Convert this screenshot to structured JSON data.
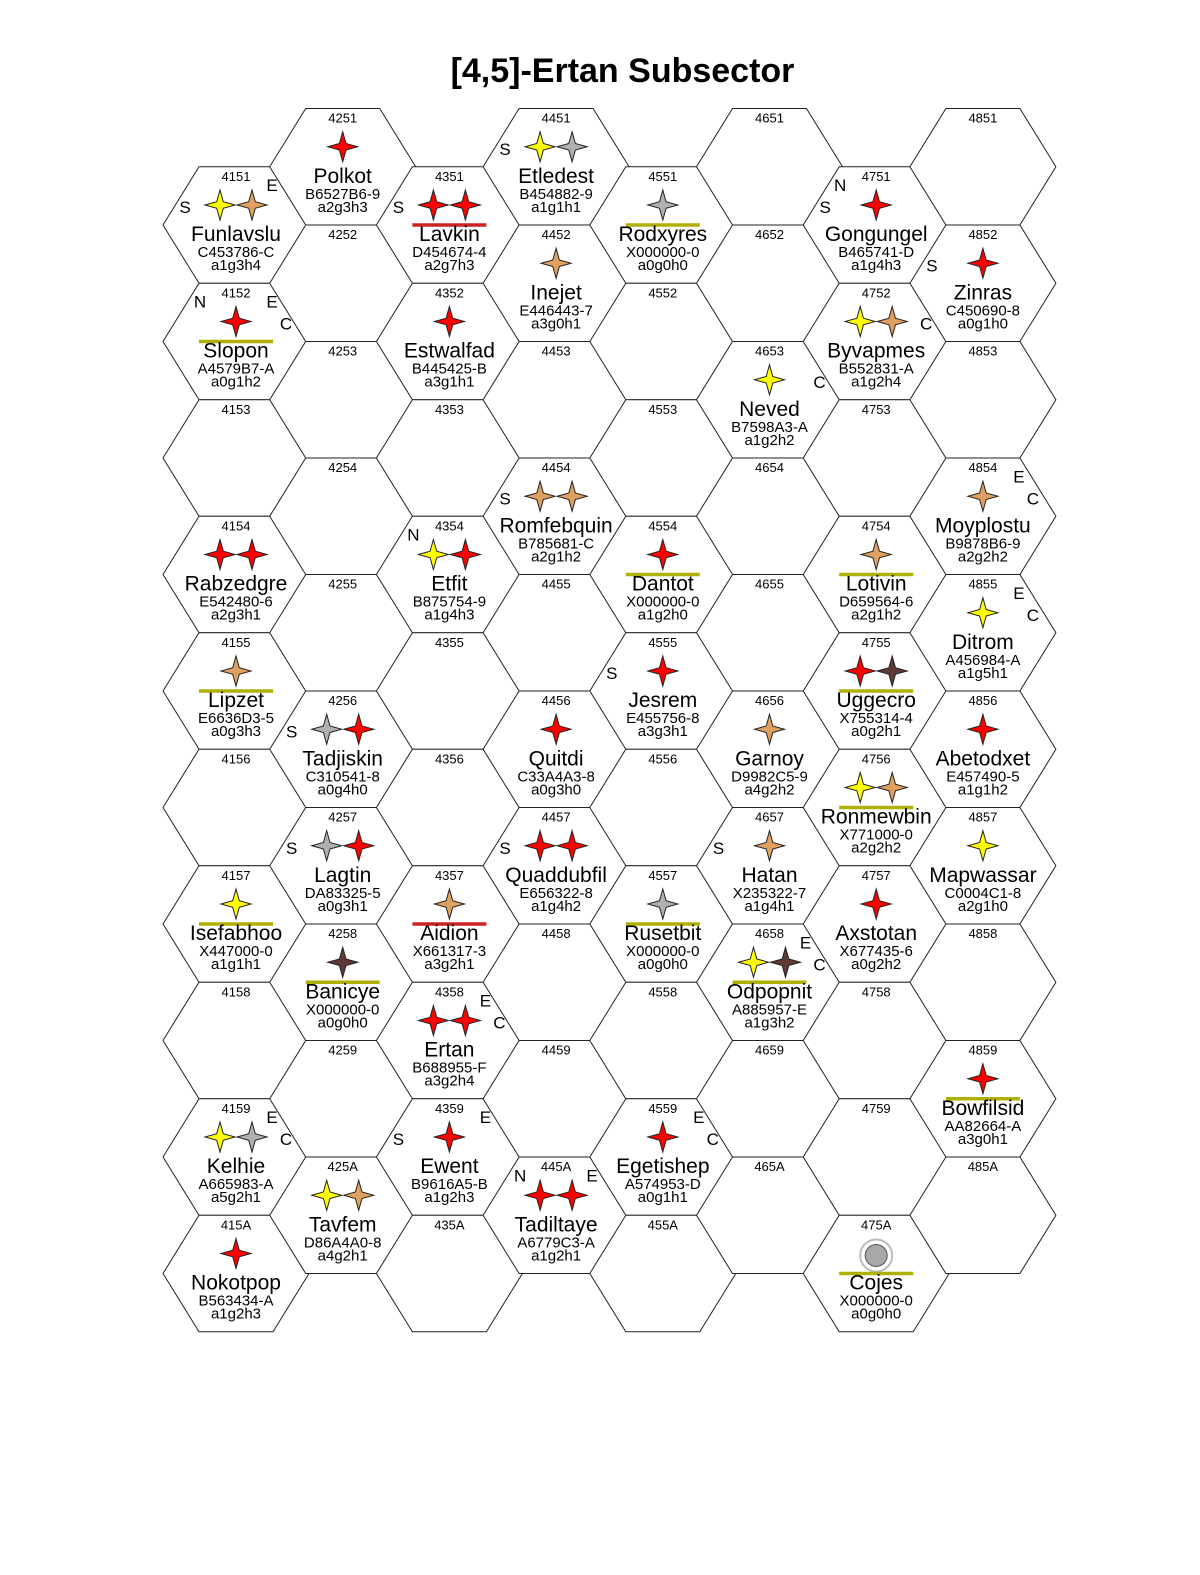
{
  "title": "[4,5]-Ertan Subsector",
  "colors": {
    "red": "#ff0000",
    "yellow": "#ffff00",
    "orange": "#e0a060",
    "grey": "#b0b0b0",
    "brown": "#603838",
    "olive": "#b0b000",
    "darkred": "#cc2222"
  },
  "hexes": [
    {
      "col": 0,
      "row": 0,
      "num": "4151",
      "name": "Funlavslu",
      "uwp": "C453786-C",
      "pbg": "a1g3h4",
      "stars": [
        "yellow",
        "orange"
      ],
      "bases": [
        "S",
        "E"
      ]
    },
    {
      "col": 0,
      "row": 1,
      "num": "4152",
      "name": "Slopon",
      "uwp": "A4579B7-A",
      "pbg": "a0g1h2",
      "stars": [
        "red"
      ],
      "bases": [
        "N",
        "E",
        "C"
      ],
      "underline": "olive"
    },
    {
      "col": 0,
      "row": 2,
      "num": "4153"
    },
    {
      "col": 0,
      "row": 3,
      "num": "4154",
      "name": "Rabzedgre",
      "uwp": "E542480-6",
      "pbg": "a2g3h1",
      "stars": [
        "red",
        "red"
      ]
    },
    {
      "col": 0,
      "row": 4,
      "num": "4155",
      "name": "Lipzet",
      "uwp": "E6636D3-5",
      "pbg": "a0g3h3",
      "stars": [
        "orange"
      ],
      "underline": "olive"
    },
    {
      "col": 0,
      "row": 5,
      "num": "4156"
    },
    {
      "col": 0,
      "row": 6,
      "num": "4157",
      "name": "Isefabhoo",
      "uwp": "X447000-0",
      "pbg": "a1g1h1",
      "stars": [
        "yellow"
      ],
      "underline": "olive"
    },
    {
      "col": 0,
      "row": 7,
      "num": "4158"
    },
    {
      "col": 0,
      "row": 8,
      "num": "4159",
      "name": "Kelhie",
      "uwp": "A665983-A",
      "pbg": "a5g2h1",
      "stars": [
        "yellow",
        "grey"
      ],
      "bases": [
        "E",
        "C"
      ]
    },
    {
      "col": 0,
      "row": 9,
      "num": "415A",
      "name": "Nokotpop",
      "uwp": "B563434-A",
      "pbg": "a1g2h3",
      "stars": [
        "red"
      ]
    },
    {
      "col": 1,
      "row": 0,
      "num": "4251",
      "name": "Polkot",
      "uwp": "B6527B6-9",
      "pbg": "a2g3h3",
      "stars": [
        "red"
      ]
    },
    {
      "col": 1,
      "row": 1,
      "num": "4252"
    },
    {
      "col": 1,
      "row": 2,
      "num": "4253"
    },
    {
      "col": 1,
      "row": 3,
      "num": "4254"
    },
    {
      "col": 1,
      "row": 4,
      "num": "4255"
    },
    {
      "col": 1,
      "row": 5,
      "num": "4256",
      "name": "Tadjiskin",
      "uwp": "C310541-8",
      "pbg": "a0g4h0",
      "stars": [
        "grey",
        "red"
      ],
      "bases": [
        "S"
      ]
    },
    {
      "col": 1,
      "row": 6,
      "num": "4257",
      "name": "Lagtin",
      "uwp": "DA83325-5",
      "pbg": "a0g3h1",
      "stars": [
        "grey",
        "red"
      ],
      "bases": [
        "S"
      ]
    },
    {
      "col": 1,
      "row": 7,
      "num": "4258",
      "name": "Banicye",
      "uwp": "X000000-0",
      "pbg": "a0g0h0",
      "stars": [
        "brown"
      ],
      "underline": "olive"
    },
    {
      "col": 1,
      "row": 8,
      "num": "4259"
    },
    {
      "col": 1,
      "row": 9,
      "num": "425A",
      "name": "Tavfem",
      "uwp": "D86A4A0-8",
      "pbg": "a4g2h1",
      "stars": [
        "yellow",
        "orange"
      ]
    },
    {
      "col": 2,
      "row": 0,
      "num": "4351",
      "name": "Lavkin",
      "uwp": "D454674-4",
      "pbg": "a2g7h3",
      "stars": [
        "red",
        "red"
      ],
      "bases": [
        "S"
      ],
      "underline": "darkred"
    },
    {
      "col": 2,
      "row": 1,
      "num": "4352",
      "name": "Estwalfad",
      "uwp": "B445425-B",
      "pbg": "a3g1h1",
      "stars": [
        "red"
      ]
    },
    {
      "col": 2,
      "row": 2,
      "num": "4353"
    },
    {
      "col": 2,
      "row": 3,
      "num": "4354",
      "name": "Etfit",
      "uwp": "B875754-9",
      "pbg": "a1g4h3",
      "stars": [
        "yellow",
        "red"
      ],
      "bases": [
        "N"
      ]
    },
    {
      "col": 2,
      "row": 4,
      "num": "4355"
    },
    {
      "col": 2,
      "row": 5,
      "num": "4356"
    },
    {
      "col": 2,
      "row": 6,
      "num": "4357",
      "name": "Aidion",
      "uwp": "X661317-3",
      "pbg": "a3g2h1",
      "stars": [
        "orange"
      ],
      "underline": "darkred"
    },
    {
      "col": 2,
      "row": 7,
      "num": "4358",
      "name": "Ertan",
      "uwp": "B688955-F",
      "pbg": "a3g2h4",
      "stars": [
        "red",
        "red"
      ],
      "bases": [
        "E",
        "C"
      ]
    },
    {
      "col": 2,
      "row": 8,
      "num": "4359",
      "name": "Ewent",
      "uwp": "B9616A5-B",
      "pbg": "a1g2h3",
      "stars": [
        "red"
      ],
      "bases": [
        "S",
        "E"
      ]
    },
    {
      "col": 2,
      "row": 9,
      "num": "435A"
    },
    {
      "col": 3,
      "row": 0,
      "num": "4451",
      "name": "Etledest",
      "uwp": "B454882-9",
      "pbg": "a1g1h1",
      "stars": [
        "yellow",
        "grey"
      ],
      "bases": [
        "S"
      ]
    },
    {
      "col": 3,
      "row": 1,
      "num": "4452",
      "name": "Inejet",
      "uwp": "E446443-7",
      "pbg": "a3g0h1",
      "stars": [
        "orange"
      ]
    },
    {
      "col": 3,
      "row": 2,
      "num": "4453"
    },
    {
      "col": 3,
      "row": 3,
      "num": "4454",
      "name": "Romfebquin",
      "uwp": "B785681-C",
      "pbg": "a2g1h2",
      "stars": [
        "orange",
        "orange"
      ],
      "bases": [
        "S"
      ]
    },
    {
      "col": 3,
      "row": 4,
      "num": "4455"
    },
    {
      "col": 3,
      "row": 5,
      "num": "4456",
      "name": "Quitdi",
      "uwp": "C33A4A3-8",
      "pbg": "a0g3h0",
      "stars": [
        "red"
      ]
    },
    {
      "col": 3,
      "row": 6,
      "num": "4457",
      "name": "Quaddubfil",
      "uwp": "E656322-8",
      "pbg": "a1g4h2",
      "stars": [
        "red",
        "red"
      ],
      "bases": [
        "S"
      ]
    },
    {
      "col": 3,
      "row": 7,
      "num": "4458"
    },
    {
      "col": 3,
      "row": 8,
      "num": "4459"
    },
    {
      "col": 3,
      "row": 9,
      "num": "445A",
      "name": "Tadiltaye",
      "uwp": "A6779C3-A",
      "pbg": "a1g2h1",
      "stars": [
        "red",
        "red"
      ],
      "bases": [
        "N",
        "E"
      ]
    },
    {
      "col": 4,
      "row": 0,
      "num": "4551",
      "name": "Rodxyres",
      "uwp": "X000000-0",
      "pbg": "a0g0h0",
      "stars": [
        "grey"
      ],
      "underline": "olive"
    },
    {
      "col": 4,
      "row": 1,
      "num": "4552"
    },
    {
      "col": 4,
      "row": 2,
      "num": "4553"
    },
    {
      "col": 4,
      "row": 3,
      "num": "4554",
      "name": "Dantot",
      "uwp": "X000000-0",
      "pbg": "a1g2h0",
      "stars": [
        "red"
      ],
      "underline": "olive"
    },
    {
      "col": 4,
      "row": 4,
      "num": "4555",
      "name": "Jesrem",
      "uwp": "E455756-8",
      "pbg": "a3g3h1",
      "stars": [
        "red"
      ],
      "bases": [
        "S"
      ]
    },
    {
      "col": 4,
      "row": 5,
      "num": "4556"
    },
    {
      "col": 4,
      "row": 6,
      "num": "4557",
      "name": "Rusetbit",
      "uwp": "X000000-0",
      "pbg": "a0g0h0",
      "stars": [
        "grey"
      ],
      "underline": "olive"
    },
    {
      "col": 4,
      "row": 7,
      "num": "4558"
    },
    {
      "col": 4,
      "row": 8,
      "num": "4559",
      "name": "Egetishep",
      "uwp": "A574953-D",
      "pbg": "a0g1h1",
      "stars": [
        "red"
      ],
      "bases": [
        "E",
        "C"
      ]
    },
    {
      "col": 4,
      "row": 9,
      "num": "455A"
    },
    {
      "col": 5,
      "row": 0,
      "num": "4651"
    },
    {
      "col": 5,
      "row": 1,
      "num": "4652"
    },
    {
      "col": 5,
      "row": 2,
      "num": "4653",
      "name": "Neved",
      "uwp": "B7598A3-A",
      "pbg": "a1g2h2",
      "stars": [
        "yellow"
      ],
      "bases": [
        "C"
      ]
    },
    {
      "col": 5,
      "row": 3,
      "num": "4654"
    },
    {
      "col": 5,
      "row": 4,
      "num": "4655"
    },
    {
      "col": 5,
      "row": 5,
      "num": "4656",
      "name": "Garnoy",
      "uwp": "D9982C5-9",
      "pbg": "a4g2h2",
      "stars": [
        "orange"
      ]
    },
    {
      "col": 5,
      "row": 6,
      "num": "4657",
      "name": "Hatan",
      "uwp": "X235322-7",
      "pbg": "a1g4h1",
      "stars": [
        "orange"
      ],
      "bases": [
        "S"
      ]
    },
    {
      "col": 5,
      "row": 7,
      "num": "4658",
      "name": "Odpopnit",
      "uwp": "A885957-E",
      "pbg": "a1g3h2",
      "stars": [
        "yellow",
        "brown"
      ],
      "bases": [
        "E",
        "C"
      ],
      "underline": "olive"
    },
    {
      "col": 5,
      "row": 8,
      "num": "4659"
    },
    {
      "col": 5,
      "row": 9,
      "num": "465A"
    },
    {
      "col": 6,
      "row": 0,
      "num": "4751",
      "name": "Gongungel",
      "uwp": "B465741-D",
      "pbg": "a1g4h3",
      "stars": [
        "red"
      ],
      "bases": [
        "N",
        "S"
      ]
    },
    {
      "col": 6,
      "row": 1,
      "num": "4752",
      "name": "Byvapmes",
      "uwp": "B552831-A",
      "pbg": "a1g2h4",
      "stars": [
        "yellow",
        "orange"
      ],
      "bases": [
        "C"
      ]
    },
    {
      "col": 6,
      "row": 2,
      "num": "4753"
    },
    {
      "col": 6,
      "row": 3,
      "num": "4754",
      "name": "Lotivin",
      "uwp": "D659564-6",
      "pbg": "a2g1h2",
      "stars": [
        "orange"
      ],
      "underline": "olive"
    },
    {
      "col": 6,
      "row": 4,
      "num": "4755",
      "name": "Uggecro",
      "uwp": "X755314-4",
      "pbg": "a0g2h1",
      "stars": [
        "red",
        "brown"
      ],
      "underline": "olive"
    },
    {
      "col": 6,
      "row": 5,
      "num": "4756",
      "name": "Ronmewbin",
      "uwp": "X771000-0",
      "pbg": "a2g2h2",
      "stars": [
        "yellow",
        "orange"
      ],
      "underline": "olive"
    },
    {
      "col": 6,
      "row": 6,
      "num": "4757",
      "name": "Axstotan",
      "uwp": "X677435-6",
      "pbg": "a0g2h2",
      "stars": [
        "red"
      ]
    },
    {
      "col": 6,
      "row": 7,
      "num": "4758"
    },
    {
      "col": 6,
      "row": 8,
      "num": "4759"
    },
    {
      "col": 6,
      "row": 9,
      "num": "475A",
      "name": "Cojes",
      "uwp": "X000000-0",
      "pbg": "a0g0h0",
      "planet": true,
      "underline": "olive"
    },
    {
      "col": 7,
      "row": 0,
      "num": "4851"
    },
    {
      "col": 7,
      "row": 1,
      "num": "4852",
      "name": "Zinras",
      "uwp": "C450690-8",
      "pbg": "a0g1h0",
      "stars": [
        "red"
      ],
      "bases": [
        "S"
      ]
    },
    {
      "col": 7,
      "row": 2,
      "num": "4853"
    },
    {
      "col": 7,
      "row": 3,
      "num": "4854",
      "name": "Moyplostu",
      "uwp": "B9878B6-9",
      "pbg": "a2g2h2",
      "stars": [
        "orange"
      ],
      "bases": [
        "E",
        "C"
      ]
    },
    {
      "col": 7,
      "row": 4,
      "num": "4855",
      "name": "Ditrom",
      "uwp": "A456984-A",
      "pbg": "a1g5h1",
      "stars": [
        "yellow"
      ],
      "bases": [
        "E",
        "C"
      ]
    },
    {
      "col": 7,
      "row": 5,
      "num": "4856",
      "name": "Abetodxet",
      "uwp": "E457490-5",
      "pbg": "a1g1h2",
      "stars": [
        "red"
      ]
    },
    {
      "col": 7,
      "row": 6,
      "num": "4857",
      "name": "Mapwassar",
      "uwp": "C0004C1-8",
      "pbg": "a2g1h0",
      "stars": [
        "yellow"
      ]
    },
    {
      "col": 7,
      "row": 7,
      "num": "4858"
    },
    {
      "col": 7,
      "row": 8,
      "num": "4859",
      "name": "Bowfilsid",
      "uwp": "AA82664-A",
      "pbg": "a3g0h1",
      "stars": [
        "red"
      ],
      "underline": "olive"
    },
    {
      "col": 7,
      "row": 9,
      "num": "485A"
    }
  ]
}
